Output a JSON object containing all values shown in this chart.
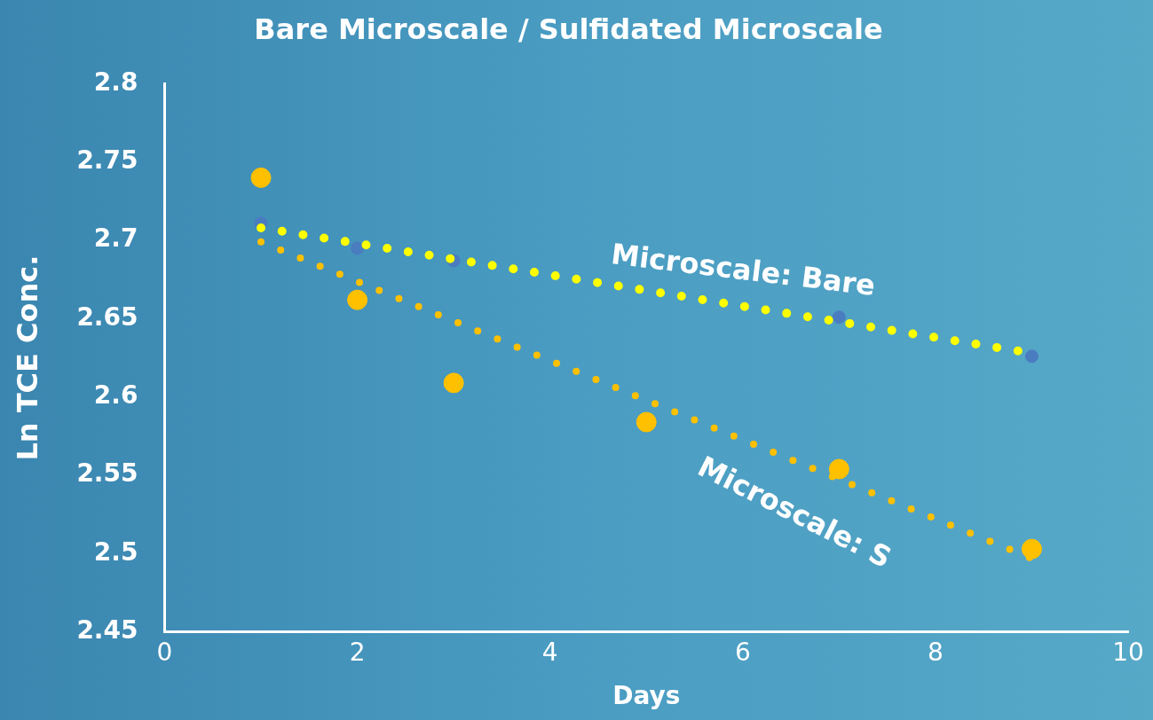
{
  "chart_data": {
    "type": "scatter",
    "title": "Bare Microscale / Sulfidated Microscale",
    "xlabel": "Days",
    "ylabel": "Ln TCE Conc.",
    "xlim": [
      0,
      10
    ],
    "xticks": [
      0,
      2,
      4,
      6,
      8,
      10
    ],
    "ylim": [
      2.45,
      2.8
    ],
    "yticks": [
      2.45,
      2.5,
      2.55,
      2.6,
      2.65,
      2.7,
      2.75,
      2.8
    ],
    "grid": false,
    "legend": false,
    "series": [
      {
        "color": "#4a7cc0",
        "marker": "circle",
        "x": [
          1,
          2,
          3,
          7,
          9
        ],
        "values": [
          2.711,
          2.695,
          2.687,
          2.651,
          2.626
        ]
      },
      {
        "color": "#ffc000",
        "marker": "circle",
        "x": [
          1,
          2,
          3,
          5,
          7,
          9
        ],
        "values": [
          2.74,
          2.662,
          2.609,
          2.584,
          2.554,
          2.503
        ]
      },
      {
        "type": "line",
        "name": "Microscale: Bare",
        "color": "#ffff00",
        "line_style": "dotted",
        "marker": "none",
        "x": [
          1,
          9
        ],
        "values": [
          2.708,
          2.628
        ]
      },
      {
        "type": "line",
        "name": "Microscale: S",
        "color": "#ffc000",
        "line_style": "dotted",
        "marker": "none",
        "x": [
          1,
          9
        ],
        "values": [
          2.699,
          2.497
        ]
      }
    ]
  }
}
